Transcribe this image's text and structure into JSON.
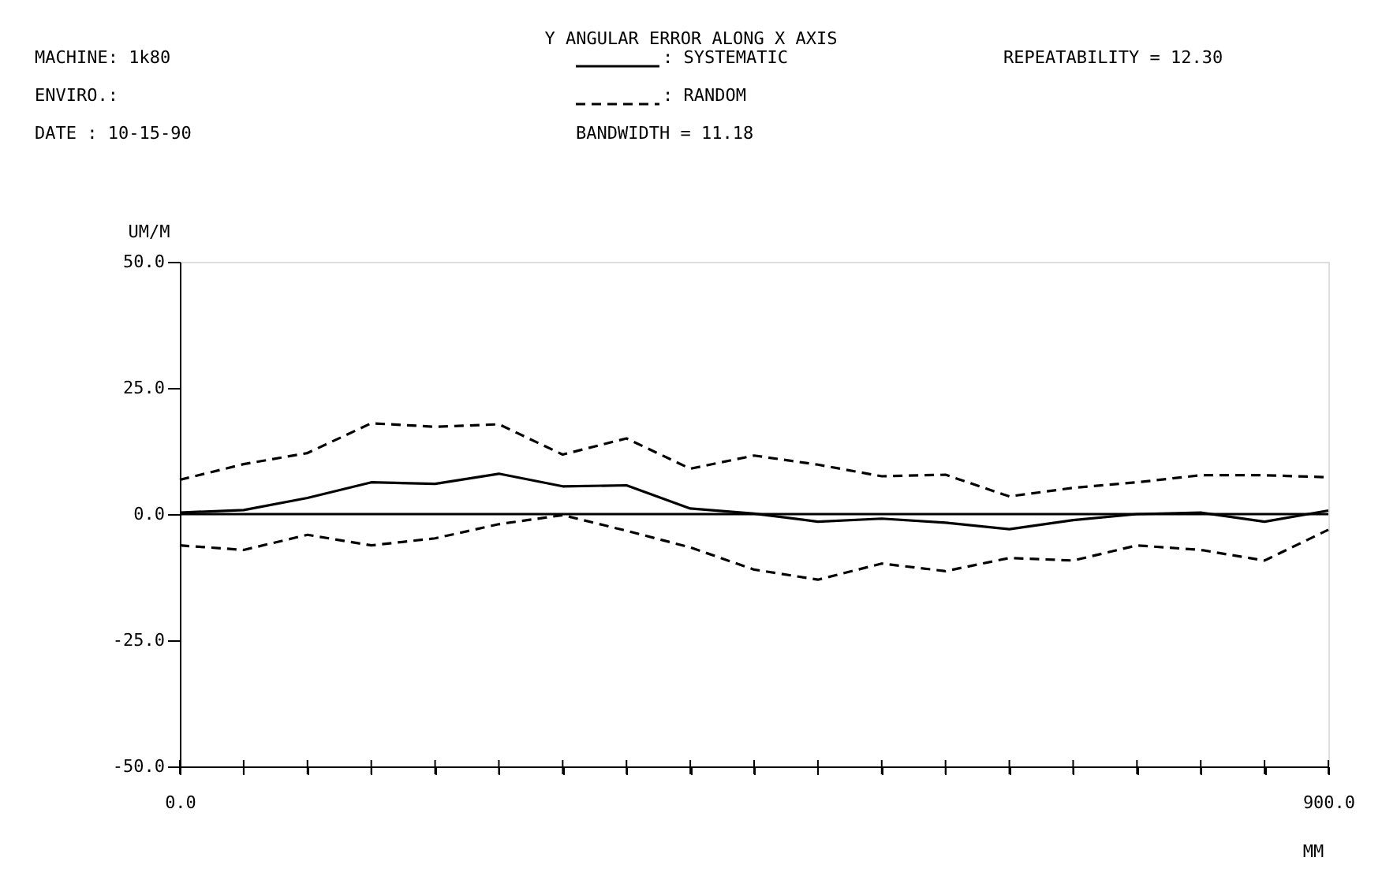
{
  "chart_data": {
    "type": "line",
    "title": "Y ANGULAR ERROR ALONG X AXIS",
    "xlabel": "MM",
    "ylabel": "UM/M",
    "x": [
      0,
      50,
      100,
      150,
      200,
      250,
      300,
      350,
      400,
      450,
      500,
      550,
      600,
      650,
      700,
      750,
      800,
      850,
      900
    ],
    "series": [
      {
        "name": ": SYSTEMATIC",
        "color": "#000000",
        "line_style": "solid",
        "values": [
          0.3,
          0.8,
          3.2,
          6.3,
          6,
          8,
          5.5,
          5.7,
          1.1,
          0.1,
          -1.5,
          -0.9,
          -1.7,
          -3,
          -1.2,
          0,
          0.3,
          -1.5,
          0.7
        ]
      },
      {
        "name": ": RANDOM",
        "color": "#000000",
        "line_style": "dashed",
        "values": [
          6.8,
          9.9,
          12.1,
          18,
          17.3,
          17.8,
          11.8,
          15,
          9,
          11.6,
          9.8,
          7.5,
          7.8,
          3.5,
          5.2,
          6.3,
          7.7,
          7.7,
          7.3
        ]
      },
      {
        "color": "#000000",
        "line_style": "dashed",
        "values": [
          -6.2,
          -7.1,
          -4.1,
          -6.2,
          -4.8,
          -2,
          -0.2,
          -3.3,
          -6.6,
          -11,
          -13,
          -9.8,
          -11.3,
          -8.7,
          -9.2,
          -6.2,
          -7.1,
          -9.2,
          -3.1
        ]
      }
    ],
    "xlim": [
      0,
      900
    ],
    "xticks": [
      {
        "value": 0,
        "label": "0.0"
      },
      {
        "value": 50,
        "label": null
      },
      {
        "value": 100,
        "label": null
      },
      {
        "value": 150,
        "label": null
      },
      {
        "value": 200,
        "label": null
      },
      {
        "value": 250,
        "label": null
      },
      {
        "value": 300,
        "label": null
      },
      {
        "value": 350,
        "label": null
      },
      {
        "value": 400,
        "label": null
      },
      {
        "value": 450,
        "label": null
      },
      {
        "value": 500,
        "label": null
      },
      {
        "value": 550,
        "label": null
      },
      {
        "value": 600,
        "label": null
      },
      {
        "value": 650,
        "label": null
      },
      {
        "value": 700,
        "label": null
      },
      {
        "value": 750,
        "label": null
      },
      {
        "value": 800,
        "label": null
      },
      {
        "value": 850,
        "label": null
      },
      {
        "value": 900,
        "label": "900.0"
      }
    ],
    "ylim": [
      -50,
      50
    ],
    "yticks": [
      {
        "value": -50,
        "label": "-50.0"
      },
      {
        "value": -25,
        "label": "-25.0"
      },
      {
        "value": 0,
        "label": "0.0"
      },
      {
        "value": 25,
        "label": "25.0"
      },
      {
        "value": 50,
        "label": "50.0"
      }
    ],
    "ref_lines": [
      {
        "axis": "y",
        "value": 0,
        "color": "#000000",
        "line_style": "solid"
      }
    ],
    "annotations": [
      "MACHINE: 1k80",
      "ENVIRO.:",
      "DATE  : 10-15-90",
      "BANDWIDTH     = 11.18",
      "REPEATABILITY = 12.30"
    ],
    "grid": false,
    "legend": "top",
    "marker": "none"
  }
}
